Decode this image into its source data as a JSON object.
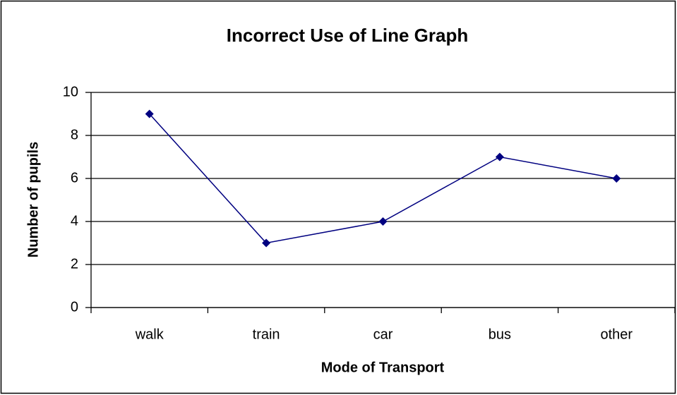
{
  "chart_data": {
    "type": "line",
    "title": "Incorrect Use of Line Graph",
    "x_label": "Mode of Transport",
    "y_label": "Number of pupils",
    "categories": [
      "walk",
      "train",
      "car",
      "bus",
      "other"
    ],
    "values": [
      9,
      3,
      4,
      7,
      6
    ],
    "color": "#000080",
    "ylim": [
      0,
      10
    ],
    "yticks": [
      0,
      2,
      4,
      6,
      8,
      10
    ],
    "grid": true
  }
}
